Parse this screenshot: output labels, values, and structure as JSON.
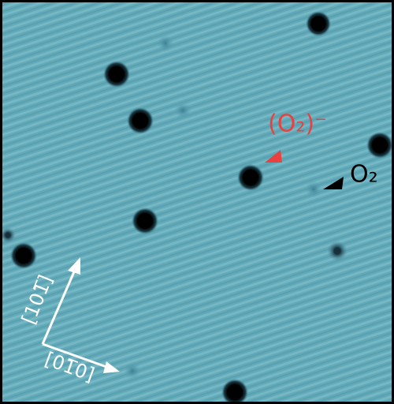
{
  "annotations": {
    "superoxide": "(O₂)⁻",
    "oxygen": "O₂"
  },
  "directions": {
    "vertical": "[101̅]",
    "horizontal": "[01̅0]"
  }
}
